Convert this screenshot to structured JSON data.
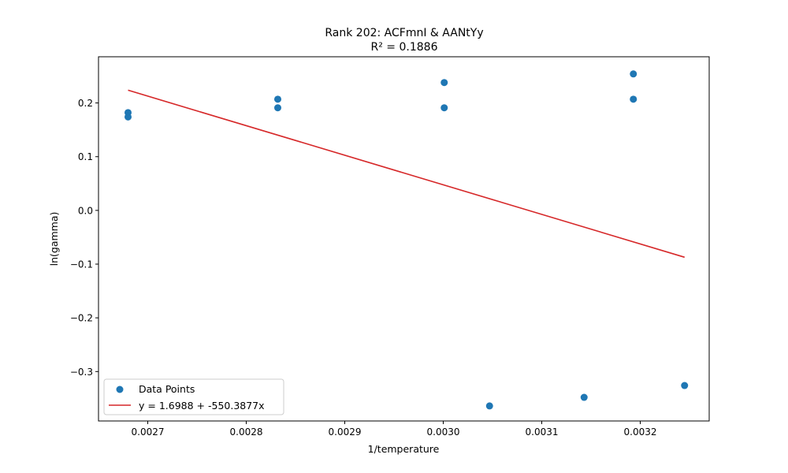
{
  "chart_data": {
    "type": "scatter",
    "title": "Rank 202: ACFmnI & AANtYy",
    "subtitle": "R² = 0.1886",
    "xlabel": "1/temperature",
    "ylabel": "ln(gamma)",
    "xlim": [
      0.00265,
      0.00327
    ],
    "ylim": [
      -0.392,
      0.286
    ],
    "xticks": [
      0.0027,
      0.0028,
      0.0029,
      0.003,
      0.0031,
      0.0032
    ],
    "xtick_labels": [
      "0.0027",
      "0.0028",
      "0.0029",
      "0.0030",
      "0.0031",
      "0.0032"
    ],
    "yticks": [
      -0.3,
      -0.2,
      -0.1,
      0.0,
      0.1,
      0.2
    ],
    "ytick_labels": [
      "−0.3",
      "−0.2",
      "−0.1",
      "0.0",
      "0.1",
      "0.2"
    ],
    "grid": false,
    "legend_position": "lower-left",
    "series": [
      {
        "name": "Data Points",
        "kind": "scatter",
        "color": "#1f77b4",
        "x": [
          0.00268,
          0.00268,
          0.002832,
          0.002832,
          0.003001,
          0.003001,
          0.003193,
          0.003193,
          0.003047,
          0.003143,
          0.003245
        ],
        "y": [
          0.182,
          0.174,
          0.207,
          0.191,
          0.238,
          0.191,
          0.254,
          0.207,
          -0.364,
          -0.348,
          -0.326
        ]
      },
      {
        "name": "y = 1.6988 + -550.3877x",
        "kind": "line",
        "color": "#d62728",
        "intercept": 1.6988,
        "slope": -550.3877,
        "x_range": [
          0.00268,
          0.003245
        ]
      }
    ]
  }
}
